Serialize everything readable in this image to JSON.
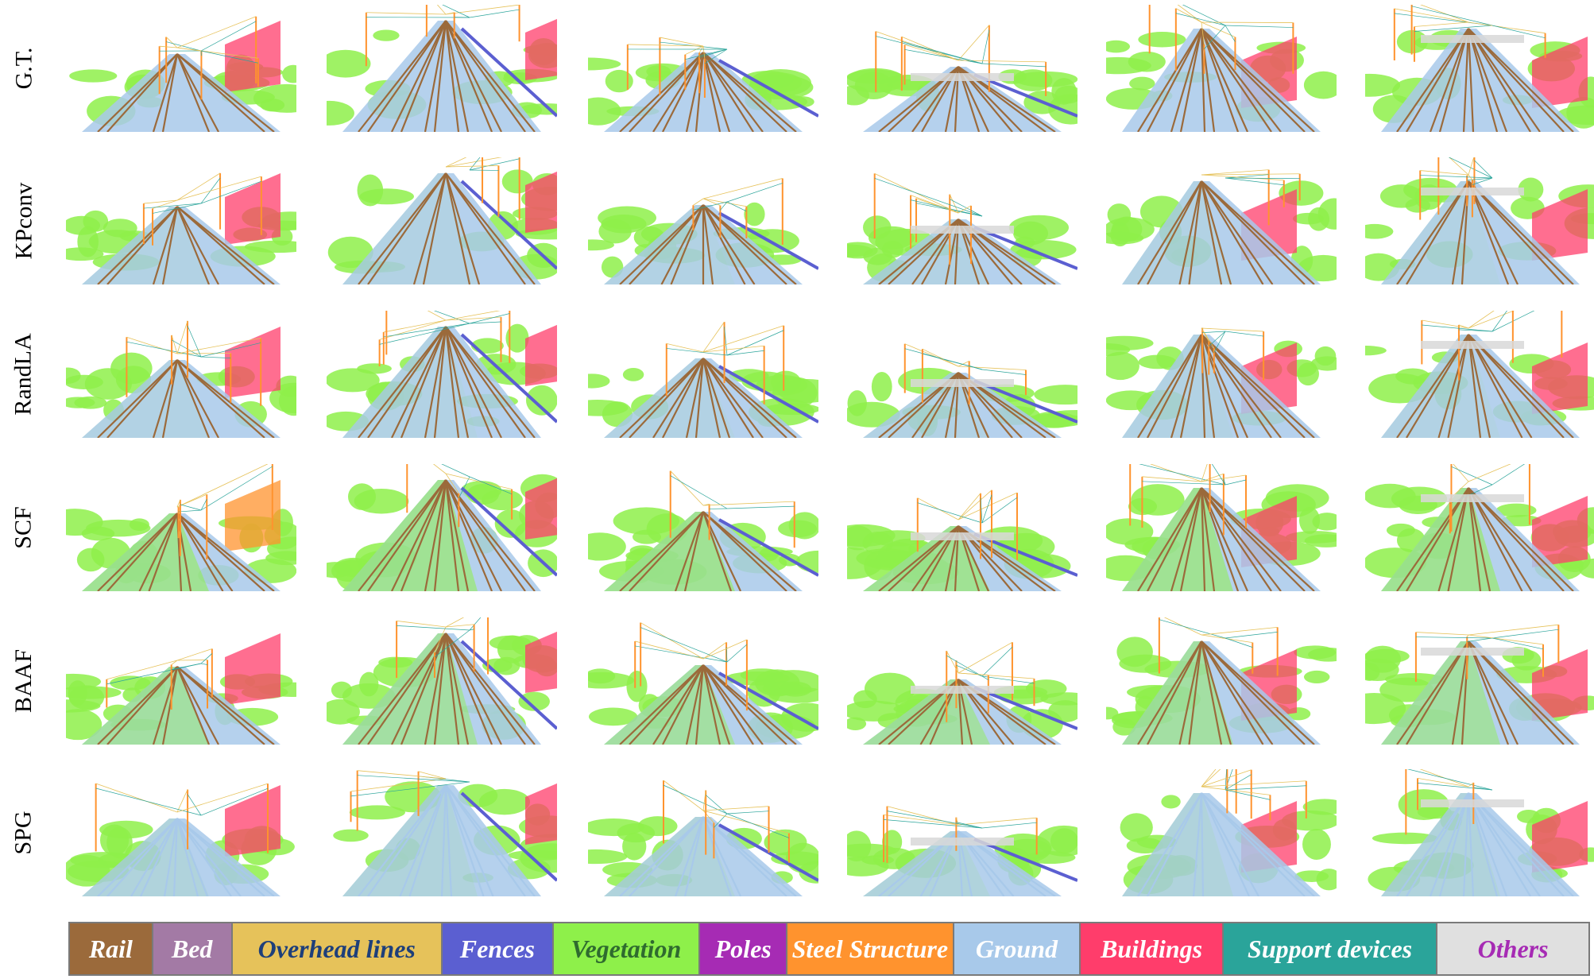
{
  "rows": [
    {
      "label": "G.T.",
      "scheme": "gt"
    },
    {
      "label": "KPconv",
      "scheme": "kp"
    },
    {
      "label": "RandLA",
      "scheme": "rl"
    },
    {
      "label": "SCF",
      "scheme": "scf"
    },
    {
      "label": "BAAF",
      "scheme": "baaf"
    },
    {
      "label": "SPG",
      "scheme": "spg"
    }
  ],
  "scenes": [
    "scene-1",
    "scene-2",
    "scene-3",
    "scene-4",
    "scene-5",
    "scene-6"
  ],
  "legend": [
    {
      "label": "Rail",
      "bg": "#9b6a3b",
      "fg": "#ffffff"
    },
    {
      "label": "Bed",
      "bg": "#a37aa5",
      "fg": "#ffffff"
    },
    {
      "label": "Overhead lines",
      "bg": "#e6c25a",
      "fg": "#1e3f7a"
    },
    {
      "label": "Fences",
      "bg": "#5b5fd1",
      "fg": "#ffffff"
    },
    {
      "label": "Vegetation",
      "bg": "#8ef04a",
      "fg": "#2f6b2f"
    },
    {
      "label": "Poles",
      "bg": "#a62bb4",
      "fg": "#ffffff"
    },
    {
      "label": "Steel Structure",
      "bg": "#ff932e",
      "fg": "#ffffff"
    },
    {
      "label": "Ground",
      "bg": "#a8c9ea",
      "fg": "#ffffff"
    },
    {
      "label": "Buildings",
      "bg": "#ff3d6b",
      "fg": "#ffffff"
    },
    {
      "label": "Support devices",
      "bg": "#2aa49a",
      "fg": "#ffffff"
    },
    {
      "label": "Others",
      "bg": "#e0e0e0",
      "fg": "#a62bb4"
    }
  ],
  "colors": {
    "rail": "#9b6a3b",
    "bed": "#a37aa5",
    "overhead": "#e6c25a",
    "fences": "#5b5fd1",
    "vegetation": "#8ef04a",
    "poles": "#a62bb4",
    "steel": "#ff932e",
    "ground": "#a8c9ea",
    "buildings": "#ff3d6b",
    "support": "#2aa49a",
    "others": "#d8d8d8"
  }
}
